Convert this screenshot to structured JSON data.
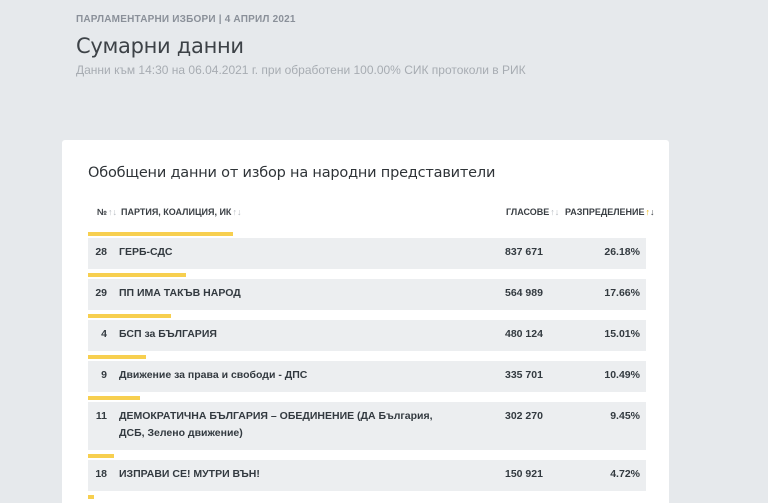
{
  "header": {
    "overline": "ПАРЛАМЕНТАРНИ ИЗБОРИ | 4 АПРИЛ 2021",
    "title": "Сумарни данни",
    "subtitle": "Данни към 14:30 на 06.04.2021 г. при обработени 100.00% СИК протоколи в РИК"
  },
  "card": {
    "title": "Обобщени данни от избор на народни представители",
    "columns": {
      "num": "№",
      "party": "ПАРТИЯ, КОАЛИЦИЯ, ИК",
      "votes": "ГЛАСОВЕ",
      "distribution": "РАЗПРЕДЕЛЕНИЕ"
    },
    "rows": [
      {
        "num": "28",
        "party": "ГЕРБ-СДС",
        "votes": "837 671",
        "dist": "26.18%",
        "share": 26.18
      },
      {
        "num": "29",
        "party": "ПП ИМА ТАКЪВ НАРОД",
        "votes": "564 989",
        "dist": "17.66%",
        "share": 17.66
      },
      {
        "num": "4",
        "party": "БСП за БЪЛГАРИЯ",
        "votes": "480 124",
        "dist": "15.01%",
        "share": 15.01
      },
      {
        "num": "9",
        "party": "Движение за права и свободи - ДПС",
        "votes": "335 701",
        "dist": "10.49%",
        "share": 10.49
      },
      {
        "num": "11",
        "party": "ДЕМОКРАТИЧНА БЪЛГАРИЯ – ОБЕДИНЕНИЕ (ДА България, ДСБ, Зелено движение)",
        "votes": "302 270",
        "dist": "9.45%",
        "share": 9.45
      },
      {
        "num": "18",
        "party": "ИЗПРАВИ СЕ! МУТРИ ВЪН!",
        "votes": "150 921",
        "dist": "4.72%",
        "share": 4.72
      },
      {
        "num": "",
        "party": "",
        "votes": "",
        "dist": "",
        "share": 1.0
      }
    ]
  },
  "colors": {
    "background": "#e6e9ec",
    "accent_bar": "#f7cf4f",
    "row_background": "#eceef0"
  }
}
